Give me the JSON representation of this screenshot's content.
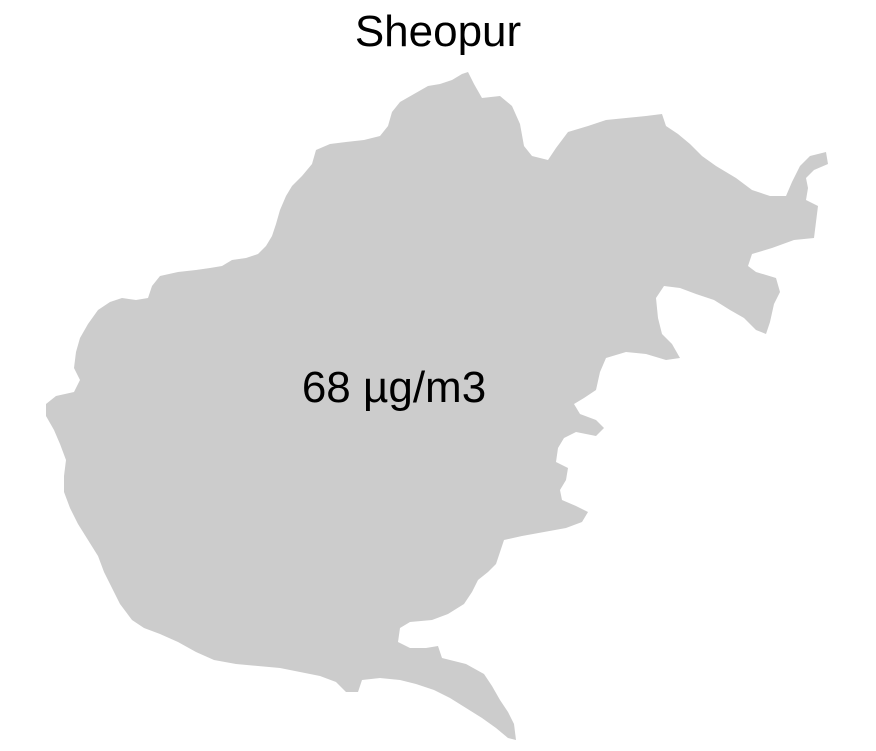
{
  "map": {
    "title": "Sheopur",
    "value_label": "68 µg/m3",
    "fill_color": "#cccccc",
    "background_color": "#ffffff",
    "text_color": "#000000"
  }
}
